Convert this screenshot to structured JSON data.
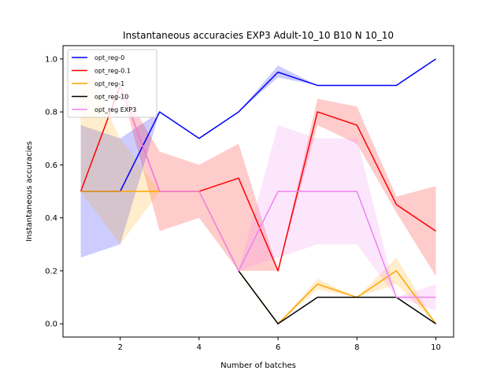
{
  "chart_data": {
    "type": "line",
    "title": "Instantaneous accuracies EXP3 Adult-10_10 B10 N 10_10",
    "xlabel": "Number of batches",
    "ylabel": "Instantaneous accuracies",
    "x": [
      1,
      2,
      3,
      4,
      5,
      6,
      7,
      8,
      9,
      10
    ],
    "xlim": [
      0.55,
      10.45
    ],
    "ylim": [
      -0.05,
      1.05
    ],
    "xticks": [
      2,
      4,
      6,
      8,
      10
    ],
    "yticks": [
      0.0,
      0.2,
      0.4,
      0.6,
      0.8,
      1.0
    ],
    "xtick_labels": [
      "2",
      "4",
      "6",
      "8",
      "10"
    ],
    "ytick_labels": [
      "0.0",
      "0.2",
      "0.4",
      "0.6",
      "0.8",
      "1.0"
    ],
    "grid": false,
    "legend_position": "top-left",
    "series": [
      {
        "name": "opt_reg-0",
        "color": "#0000ff",
        "values": [
          0.5,
          0.5,
          0.8,
          0.7,
          0.8,
          0.95,
          0.9,
          0.9,
          0.9,
          1.0
        ],
        "lower": [
          0.25,
          0.3,
          0.8,
          0.7,
          0.8,
          0.93,
          0.9,
          0.9,
          0.9,
          1.0
        ],
        "upper": [
          0.75,
          0.7,
          0.8,
          0.7,
          0.8,
          0.975,
          0.9,
          0.9,
          0.9,
          1.0
        ]
      },
      {
        "name": "opt_reg-0.1",
        "color": "#ff0000",
        "values": [
          0.5,
          0.9,
          0.5,
          0.5,
          0.55,
          0.2,
          0.8,
          0.75,
          0.45,
          0.35
        ],
        "lower": [
          0.5,
          0.9,
          0.35,
          0.4,
          0.2,
          0.2,
          0.75,
          0.68,
          0.42,
          0.18
        ],
        "upper": [
          0.5,
          0.9,
          0.65,
          0.6,
          0.68,
          0.2,
          0.85,
          0.82,
          0.48,
          0.52
        ]
      },
      {
        "name": "opt_reg-1",
        "color": "#ffa500",
        "values": [
          0.5,
          0.5,
          0.5,
          0.5,
          0.2,
          0.0,
          0.15,
          0.1,
          0.2,
          0.0
        ],
        "lower": [
          0.5,
          0.3,
          0.5,
          0.5,
          0.2,
          0.0,
          0.13,
          0.1,
          0.15,
          0.0
        ],
        "upper": [
          1.0,
          0.7,
          0.5,
          0.5,
          0.2,
          0.0,
          0.17,
          0.1,
          0.25,
          0.0
        ]
      },
      {
        "name": "opt_reg-10",
        "color": "#000000",
        "values": [
          null,
          null,
          null,
          null,
          0.2,
          0.0,
          0.1,
          0.1,
          0.1,
          0.0
        ],
        "lower": [
          null,
          null,
          null,
          null,
          0.2,
          0.0,
          0.1,
          0.1,
          0.1,
          0.0
        ],
        "upper": [
          null,
          null,
          null,
          null,
          0.2,
          0.0,
          0.1,
          0.1,
          0.1,
          0.0
        ]
      },
      {
        "name": "opt_reg EXP3",
        "color": "#ee82ee",
        "values": [
          null,
          0.9,
          0.5,
          0.5,
          0.2,
          0.5,
          0.5,
          0.5,
          0.1,
          0.1
        ],
        "lower": [
          null,
          0.9,
          0.5,
          0.5,
          0.2,
          0.25,
          0.3,
          0.3,
          0.1,
          0.05
        ],
        "upper": [
          null,
          0.9,
          0.5,
          0.5,
          0.2,
          0.75,
          0.7,
          0.7,
          0.1,
          0.15
        ]
      }
    ]
  }
}
